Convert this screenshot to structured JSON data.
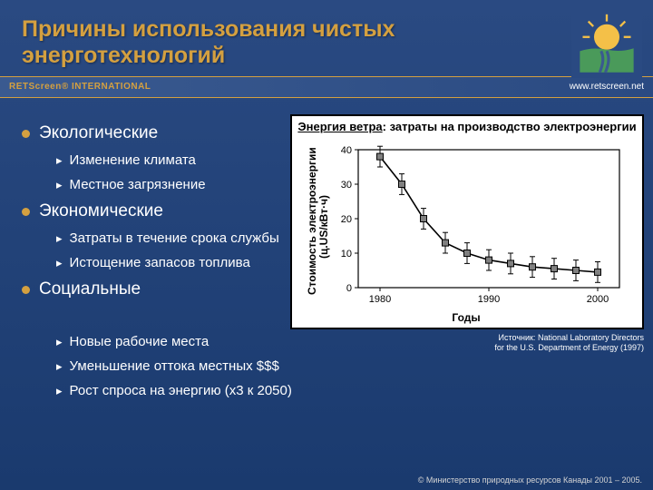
{
  "title_line1": "Причины использования чистых",
  "title_line2": "энерготехнологий",
  "banner": {
    "left": "RETScreen® INTERNATIONAL",
    "right": "www.retscreen.net"
  },
  "bullets": [
    {
      "label": "Экологические",
      "subs": [
        "Изменение климата",
        "Местное загрязнение"
      ]
    },
    {
      "label": "Экономические",
      "subs": [
        "Затраты в течение срока службы",
        "Истощение запасов топлива"
      ]
    },
    {
      "label": "Социальные",
      "subs": [
        "Новые рабочие места",
        "Уменьшение оттока местных $$$",
        "Рост спроса на энергию (x3 к 2050)"
      ]
    }
  ],
  "chart": {
    "type": "line",
    "title_pre": "Энергия ветра",
    "title_post": ": затраты на производство электроэнергии",
    "ylabel_l1": "Стоимость электроэнергии",
    "ylabel_l2": "(ц.US/кВт·ч)",
    "xlabel": "Годы",
    "ylim": [
      0,
      40
    ],
    "ytick_step": 10,
    "yticks": [
      "0",
      "10",
      "20",
      "30",
      "40"
    ],
    "xlim": [
      1978,
      2002
    ],
    "xticks_pos": [
      1980,
      1990,
      2000
    ],
    "xticks": [
      "1980",
      "1990",
      "2000"
    ],
    "points_x": [
      1980,
      1982,
      1984,
      1986,
      1988,
      1990,
      1992,
      1994,
      1996,
      1998,
      2000
    ],
    "points_y": [
      38,
      30,
      20,
      13,
      10,
      8,
      7,
      6,
      5.5,
      5,
      4.5
    ],
    "error": 3,
    "line_color": "#000000",
    "marker_fill": "#808080",
    "marker_stroke": "#000000",
    "background_color": "#ffffff",
    "border_color": "#000000"
  },
  "source_l1": "Источник: National Laboratory Directors",
  "source_l2": "for the U.S. Department of Energy (1997)",
  "footer": "© Министерство природных ресурсов Канады 2001 – 2005."
}
